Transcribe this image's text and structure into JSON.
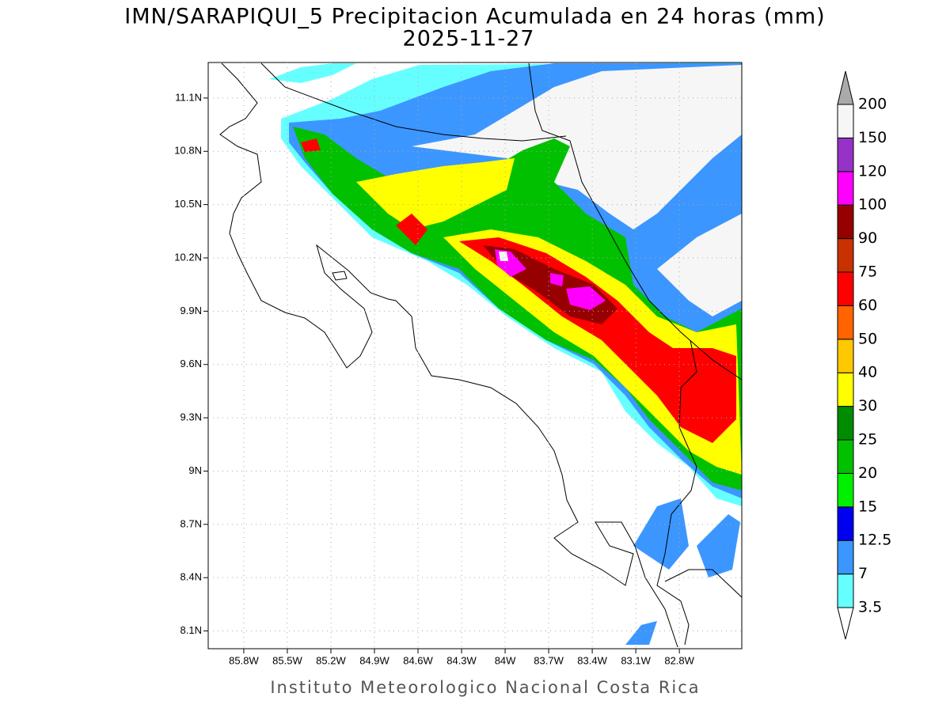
{
  "title": "IMN/SARAPIQUI_5 Precipitacion Acumulada en 24 horas (mm)",
  "date": "2025-11-27",
  "footer": "Instituto Meteorologico Nacional Costa Rica",
  "map": {
    "lonlim": [
      86.045,
      82.37
    ],
    "latlim": [
      8.0,
      11.3
    ],
    "lon_ticks": [
      {
        "value": 85.8,
        "label": "85.8W"
      },
      {
        "value": 85.5,
        "label": "85.5W"
      },
      {
        "value": 85.2,
        "label": "85.2W"
      },
      {
        "value": 84.9,
        "label": "84.9W"
      },
      {
        "value": 84.6,
        "label": "84.6W"
      },
      {
        "value": 84.3,
        "label": "84.3W"
      },
      {
        "value": 84,
        "label": "84W"
      },
      {
        "value": 83.7,
        "label": "83.7W"
      },
      {
        "value": 83.4,
        "label": "83.4W"
      },
      {
        "value": 83.1,
        "label": "83.1W"
      },
      {
        "value": 82.8,
        "label": "82.8W"
      }
    ],
    "lat_ticks": [
      {
        "value": 11.1,
        "label": "11.1N"
      },
      {
        "value": 10.8,
        "label": "10.8N"
      },
      {
        "value": 10.5,
        "label": "10.5N"
      },
      {
        "value": 10.2,
        "label": "10.2N"
      },
      {
        "value": 9.9,
        "label": "9.9N"
      },
      {
        "value": 9.6,
        "label": "9.6N"
      },
      {
        "value": 9.3,
        "label": "9.3N"
      },
      {
        "value": 9,
        "label": "9N"
      },
      {
        "value": 8.7,
        "label": "8.7N"
      },
      {
        "value": 8.4,
        "label": "8.4N"
      },
      {
        "value": 8.1,
        "label": "8.1N"
      }
    ],
    "grid": true,
    "colorbar": {
      "levels": [
        3.5,
        7,
        12.5,
        15,
        20,
        25,
        30,
        40,
        50,
        60,
        75,
        90,
        100,
        120,
        150,
        200
      ],
      "colors": [
        "#66ffff",
        "#3c96ff",
        "#0000f0",
        "#00f000",
        "#00c000",
        "#008c00",
        "#ffff00",
        "#ffc800",
        "#ff6400",
        "#ff0000",
        "#c83200",
        "#960000",
        "#ff00ff",
        "#9632c8",
        "#f6f6f6"
      ],
      "under_color": "#ffffff",
      "over_color": "#aaaaaa"
    }
  }
}
